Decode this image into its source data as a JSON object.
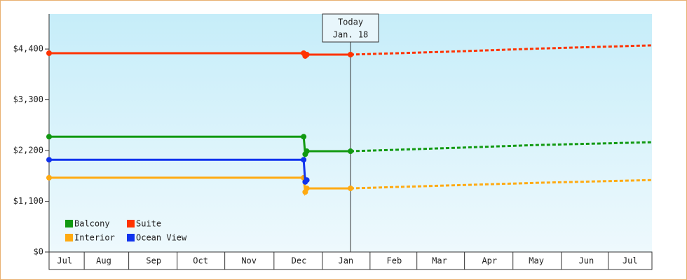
{
  "chart_data": {
    "type": "line",
    "xlim": [
      -193,
      193
    ],
    "ylim": [
      0,
      5160
    ],
    "yticks": [
      {
        "value": 0,
        "label": "$0"
      },
      {
        "value": 1100,
        "label": "$1,100"
      },
      {
        "value": 2200,
        "label": "$2,200"
      },
      {
        "value": 3300,
        "label": "$3,300"
      },
      {
        "value": 4400,
        "label": "$4,400"
      }
    ],
    "xticks": [
      {
        "value": -183,
        "label": "Jul"
      },
      {
        "value": -158,
        "label": "Aug"
      },
      {
        "value": -126,
        "label": "Sep"
      },
      {
        "value": -96,
        "label": "Oct"
      },
      {
        "value": -65,
        "label": "Nov"
      },
      {
        "value": -33,
        "label": "Dec"
      },
      {
        "value": -3,
        "label": "Jan"
      },
      {
        "value": 28,
        "label": "Feb"
      },
      {
        "value": 57,
        "label": "Mar"
      },
      {
        "value": 89,
        "label": "Apr"
      },
      {
        "value": 119,
        "label": "May"
      },
      {
        "value": 151,
        "label": "Jun"
      },
      {
        "value": 179,
        "label": "Jul"
      }
    ],
    "today": {
      "x": 0,
      "label": "Today",
      "date": "Jan. 18"
    },
    "series": [
      {
        "name": "Balcony",
        "color": "#119911",
        "x": [
          -193,
          -30,
          -29,
          -28,
          0
        ],
        "values": [
          2500,
          2500,
          2120,
          2185,
          2185
        ],
        "forecast_x": [
          0,
          60,
          120,
          193
        ],
        "forecast_values": [
          2185,
          2250,
          2320,
          2380
        ]
      },
      {
        "name": "Suite",
        "color": "#ff3300",
        "x": [
          -193,
          -30,
          -29,
          -28,
          0
        ],
        "values": [
          4310,
          4310,
          4250,
          4280,
          4280
        ],
        "forecast_x": [
          0,
          60,
          120,
          193
        ],
        "forecast_values": [
          4280,
          4340,
          4410,
          4480
        ]
      },
      {
        "name": "Interior",
        "color": "#ffaa11",
        "x": [
          -193,
          -30,
          -29,
          -28,
          0
        ],
        "values": [
          1610,
          1610,
          1300,
          1380,
          1380
        ],
        "forecast_x": [
          0,
          60,
          120,
          193
        ],
        "forecast_values": [
          1380,
          1440,
          1500,
          1560
        ]
      },
      {
        "name": "Ocean View",
        "color": "#1133ee",
        "x": [
          -193,
          -30,
          -29,
          -28
        ],
        "values": [
          2000,
          2000,
          1520,
          1560
        ],
        "forecast_x": [],
        "forecast_values": []
      }
    ]
  }
}
